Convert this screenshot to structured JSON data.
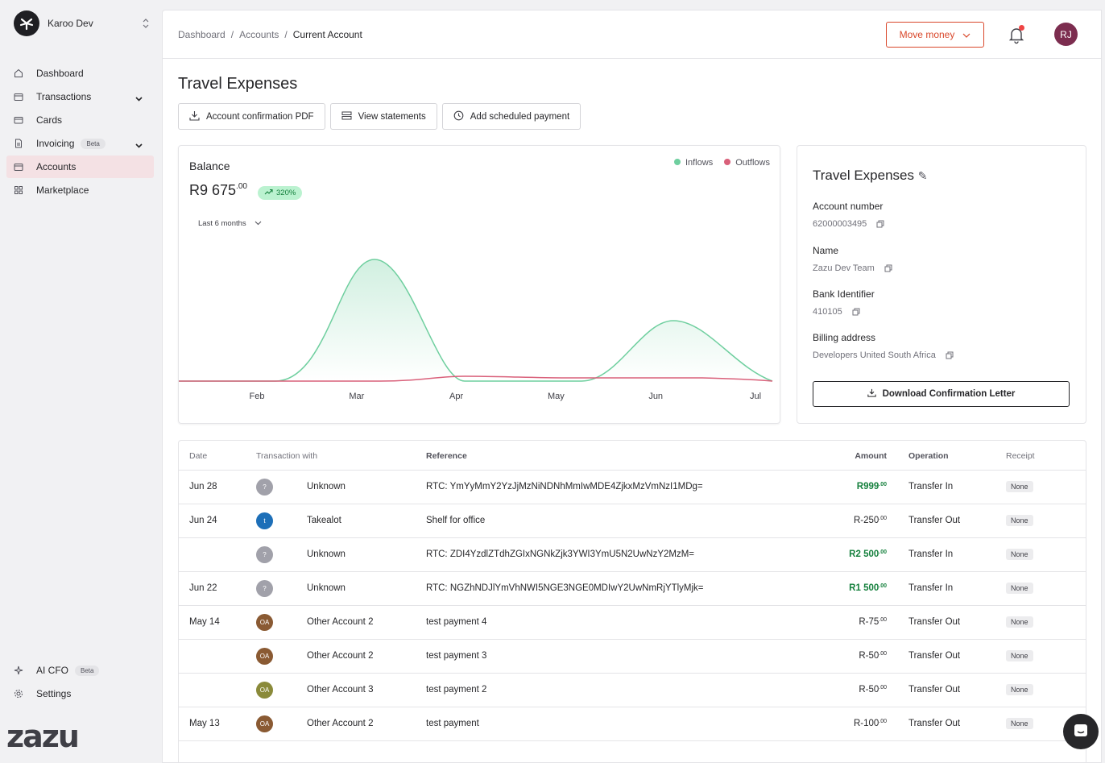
{
  "org": {
    "name": "Karoo Dev"
  },
  "nav": {
    "items": [
      {
        "label": "Dashboard",
        "icon": "home-icon"
      },
      {
        "label": "Transactions",
        "icon": "wallet-icon",
        "expandable": true
      },
      {
        "label": "Cards",
        "icon": "card-icon"
      },
      {
        "label": "Invoicing",
        "icon": "document-icon",
        "badge": "Beta",
        "expandable": true
      },
      {
        "label": "Accounts",
        "icon": "wallet-icon",
        "active": true
      },
      {
        "label": "Marketplace",
        "icon": "grid-icon"
      }
    ],
    "bottom": [
      {
        "label": "AI CFO",
        "icon": "sparkle-icon",
        "badge": "Beta"
      },
      {
        "label": "Settings",
        "icon": "gear-icon"
      }
    ],
    "brand": "zazu"
  },
  "breadcrumb": {
    "items": [
      "Dashboard",
      "Accounts"
    ],
    "current": "Current Account"
  },
  "header": {
    "move_money": "Move money",
    "avatar_initials": "RJ"
  },
  "page": {
    "title": "Travel Expenses",
    "actions": [
      "Account confirmation PDF",
      "View statements",
      "Add scheduled payment"
    ]
  },
  "balance": {
    "label": "Balance",
    "amount": "R9 675",
    "cents": ".00",
    "growth": "320%",
    "period": "Last 6 months",
    "legend": {
      "inflows": "Inflows",
      "outflows": "Outflows"
    }
  },
  "chart_data": {
    "type": "area",
    "x": [
      "Feb",
      "Mar",
      "Apr",
      "May",
      "Jun",
      "Jul"
    ],
    "series": [
      {
        "name": "Inflows",
        "color": "#6fcf9f"
      },
      {
        "name": "Outflows",
        "color": "#d9607a"
      }
    ],
    "grid": false,
    "legend": "top-right"
  },
  "details": {
    "title": "Travel Expenses",
    "fields": [
      {
        "label": "Account number",
        "value": "62000003495"
      },
      {
        "label": "Name",
        "value": "Zazu Dev Team"
      },
      {
        "label": "Bank Identifier",
        "value": "410105"
      },
      {
        "label": "Billing address",
        "value": "Developers United South Africa"
      }
    ],
    "download_label": "Download Confirmation Letter"
  },
  "table": {
    "headers": {
      "date": "Date",
      "with": "Transaction with",
      "reference": "Reference",
      "amount": "Amount",
      "operation": "Operation",
      "receipt": "Receipt"
    },
    "rows": [
      {
        "date": "Jun 28",
        "avatar": "?",
        "avatar_color": "#a1a1aa",
        "name": "Unknown",
        "reference": "RTC: YmYyMmY2YzJjMzNiNDNhMmIwMDE4ZjkxMzVmNzI1MDg=",
        "amount": "R999",
        "cents": ".00",
        "direction": "in",
        "operation": "Transfer In",
        "receipt": "None"
      },
      {
        "date": "Jun 24",
        "avatar": "t",
        "avatar_color": "#1d6fb8",
        "name": "Takealot",
        "reference": "Shelf for office",
        "amount": "R-250",
        "cents": ".00",
        "direction": "out",
        "operation": "Transfer Out",
        "receipt": "None"
      },
      {
        "date": "",
        "avatar": "?",
        "avatar_color": "#a1a1aa",
        "name": "Unknown",
        "reference": "RTC: ZDI4YzdlZTdhZGIxNGNkZjk3YWI3YmU5N2UwNzY2MzM=",
        "amount": "R2 500",
        "cents": ".00",
        "direction": "in",
        "operation": "Transfer In",
        "receipt": "None"
      },
      {
        "date": "Jun 22",
        "avatar": "?",
        "avatar_color": "#a1a1aa",
        "name": "Unknown",
        "reference": "RTC: NGZhNDJlYmVhNWI5NGE3NGE0MDIwY2UwNmRjYTlyMjk=",
        "amount": "R1 500",
        "cents": ".00",
        "direction": "in",
        "operation": "Transfer In",
        "receipt": "None"
      },
      {
        "date": "May 14",
        "avatar": "OA",
        "avatar_color": "#8a5a33",
        "name": "Other Account 2",
        "reference": "test payment 4",
        "amount": "R-75",
        "cents": ".00",
        "direction": "out",
        "operation": "Transfer Out",
        "receipt": "None"
      },
      {
        "date": "",
        "avatar": "OA",
        "avatar_color": "#8a5a33",
        "name": "Other Account 2",
        "reference": "test payment 3",
        "amount": "R-50",
        "cents": ".00",
        "direction": "out",
        "operation": "Transfer Out",
        "receipt": "None"
      },
      {
        "date": "",
        "avatar": "OA",
        "avatar_color": "#8a8a3a",
        "name": "Other Account 3",
        "reference": "test payment 2",
        "amount": "R-50",
        "cents": ".00",
        "direction": "out",
        "operation": "Transfer Out",
        "receipt": "None"
      },
      {
        "date": "May 13",
        "avatar": "OA",
        "avatar_color": "#8a5a33",
        "name": "Other Account 2",
        "reference": "test payment",
        "amount": "R-100",
        "cents": ".00",
        "direction": "out",
        "operation": "Transfer Out",
        "receipt": "None"
      }
    ]
  }
}
